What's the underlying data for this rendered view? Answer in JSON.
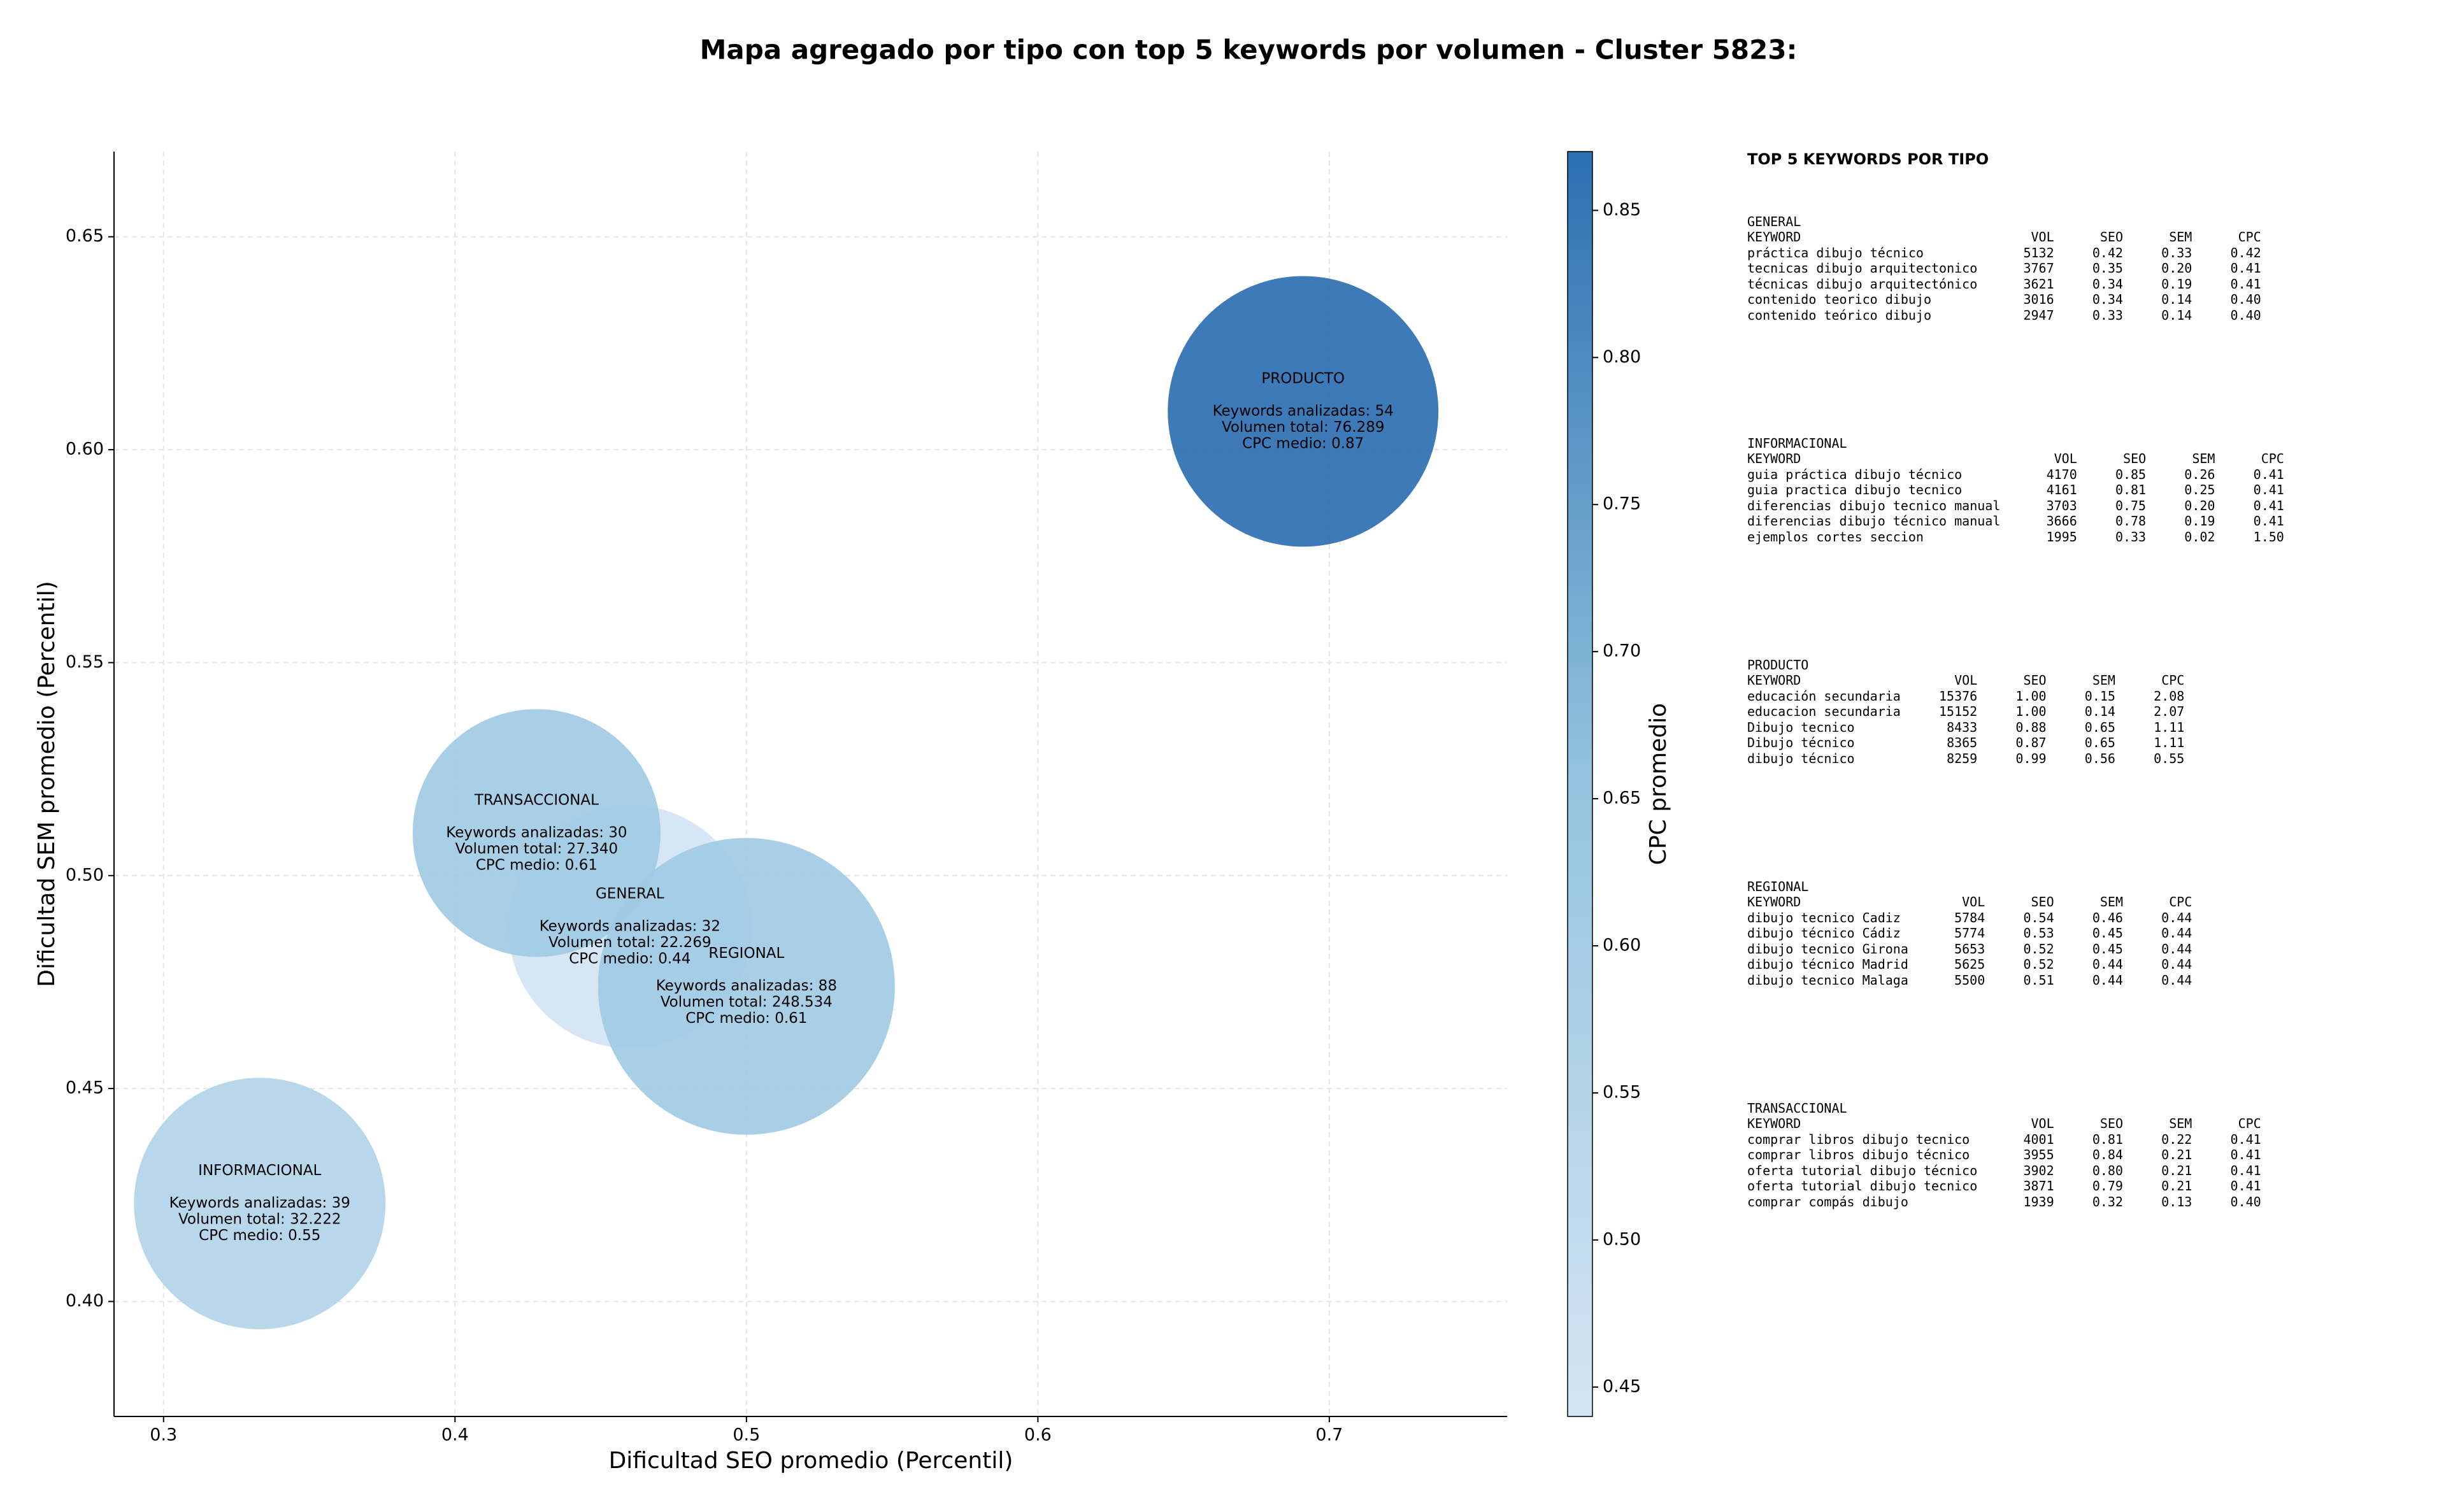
{
  "chart_data": {
    "type": "bubble",
    "title": "Mapa agregado por tipo con top 5 keywords por volumen - Cluster 5823:",
    "x_label": "Dificultad SEO promedio (Percentil)",
    "y_label": "Dificultad SEM promedio (Percentil)",
    "colorbar_label": "CPC promedio",
    "categories": [
      "GENERAL",
      "INFORMACIONAL",
      "PRODUCTO",
      "REGIONAL",
      "TRANSACCIONAL"
    ],
    "x": [
      0.46,
      0.333,
      0.691,
      0.5,
      0.428
    ],
    "values": [
      0.488,
      0.423,
      0.609,
      0.474,
      0.51
    ],
    "sizes": [
      22269,
      32222,
      76289,
      248534,
      27340
    ],
    "cpc": [
      0.44,
      0.55,
      0.87,
      0.61,
      0.61
    ],
    "labels": [
      [
        "Keywords analizadas: 32",
        "Volumen total: 22.269",
        "CPC medio: 0.44"
      ],
      [
        "Keywords analizadas: 39",
        "Volumen total: 32.222",
        "CPC medio: 0.55"
      ],
      [
        "Keywords analizadas: 54",
        "Volumen total: 76.289",
        "CPC medio: 0.87"
      ],
      [
        "Keywords analizadas: 88",
        "Volumen total: 248.534",
        "CPC medio: 0.61"
      ],
      [
        "Keywords analizadas: 30",
        "Volumen total: 27.340",
        "CPC medio: 0.61"
      ]
    ],
    "xlim": [
      0.283,
      0.761
    ],
    "ylim": [
      0.373,
      0.67
    ],
    "xticks": [
      0.3,
      0.4,
      0.5,
      0.6,
      0.7
    ],
    "yticks": [
      {
        "value": 0.4,
        "label": "0.40"
      },
      0.45,
      {
        "value": 0.5,
        "label": "0.50"
      },
      0.55,
      {
        "value": 0.6,
        "label": "0.60"
      },
      0.65
    ],
    "clim": [
      0.44,
      0.87
    ],
    "cticks": [
      0.45,
      {
        "value": 0.5,
        "label": "0.50"
      },
      0.55,
      {
        "value": 0.6,
        "label": "0.60"
      },
      0.65,
      {
        "value": 0.7,
        "label": "0.70"
      },
      0.75,
      {
        "value": 0.8,
        "label": "0.80"
      },
      0.85
    ],
    "colormap": [
      "#d4e4f4",
      "#94c4df",
      "#2c6fb1"
    ],
    "grid": true
  },
  "panel": {
    "title": "TOP 5 KEYWORDS POR TIPO",
    "sections": [
      {
        "name": "GENERAL",
        "columns": [
          "KEYWORD",
          "VOL",
          "SEO",
          "SEM",
          "CPC"
        ],
        "rows": [
          [
            "práctica dibujo técnico",
            "5132",
            "0.42",
            "0.33",
            "0.42"
          ],
          [
            "tecnicas dibujo arquitectonico",
            "3767",
            "0.35",
            "0.20",
            "0.41"
          ],
          [
            "técnicas dibujo arquitectónico",
            "3621",
            "0.34",
            "0.19",
            "0.41"
          ],
          [
            "contenido teorico dibujo",
            "3016",
            "0.34",
            "0.14",
            "0.40"
          ],
          [
            "contenido teórico dibujo",
            "2947",
            "0.33",
            "0.14",
            "0.40"
          ]
        ]
      },
      {
        "name": "INFORMACIONAL",
        "columns": [
          "KEYWORD",
          "VOL",
          "SEO",
          "SEM",
          "CPC"
        ],
        "rows": [
          [
            "guia práctica dibujo técnico",
            "4170",
            "0.85",
            "0.26",
            "0.41"
          ],
          [
            "guia practica dibujo tecnico",
            "4161",
            "0.81",
            "0.25",
            "0.41"
          ],
          [
            "diferencias dibujo tecnico manual",
            "3703",
            "0.75",
            "0.20",
            "0.41"
          ],
          [
            "diferencias dibujo técnico manual",
            "3666",
            "0.78",
            "0.19",
            "0.41"
          ],
          [
            "ejemplos cortes seccion",
            "1995",
            "0.33",
            "0.02",
            "1.50"
          ]
        ]
      },
      {
        "name": "PRODUCTO",
        "columns": [
          "KEYWORD",
          "VOL",
          "SEO",
          "SEM",
          "CPC"
        ],
        "rows": [
          [
            "educación secundaria",
            "15376",
            "1.00",
            "0.15",
            "2.08"
          ],
          [
            "educacion secundaria",
            "15152",
            "1.00",
            "0.14",
            "2.07"
          ],
          [
            "Dibujo tecnico",
            "8433",
            "0.88",
            "0.65",
            "1.11"
          ],
          [
            "Dibujo técnico",
            "8365",
            "0.87",
            "0.65",
            "1.11"
          ],
          [
            "dibujo técnico",
            "8259",
            "0.99",
            "0.56",
            "0.55"
          ]
        ]
      },
      {
        "name": "REGIONAL",
        "columns": [
          "KEYWORD",
          "VOL",
          "SEO",
          "SEM",
          "CPC"
        ],
        "rows": [
          [
            "dibujo tecnico Cadiz",
            "5784",
            "0.54",
            "0.46",
            "0.44"
          ],
          [
            "dibujo técnico Cádiz",
            "5774",
            "0.53",
            "0.45",
            "0.44"
          ],
          [
            "dibujo tecnico Girona",
            "5653",
            "0.52",
            "0.45",
            "0.44"
          ],
          [
            "dibujo técnico Madrid",
            "5625",
            "0.52",
            "0.44",
            "0.44"
          ],
          [
            "dibujo tecnico Malaga",
            "5500",
            "0.51",
            "0.44",
            "0.44"
          ]
        ]
      },
      {
        "name": "TRANSACCIONAL",
        "columns": [
          "KEYWORD",
          "VOL",
          "SEO",
          "SEM",
          "CPC"
        ],
        "rows": [
          [
            "comprar libros dibujo tecnico",
            "4001",
            "0.81",
            "0.22",
            "0.41"
          ],
          [
            "comprar libros dibujo técnico",
            "3955",
            "0.84",
            "0.21",
            "0.41"
          ],
          [
            "oferta tutorial dibujo técnico",
            "3902",
            "0.80",
            "0.21",
            "0.41"
          ],
          [
            "oferta tutorial dibujo tecnico",
            "3871",
            "0.79",
            "0.21",
            "0.41"
          ],
          [
            "comprar compás dibujo",
            "1939",
            "0.32",
            "0.13",
            "0.40"
          ]
        ]
      }
    ]
  }
}
